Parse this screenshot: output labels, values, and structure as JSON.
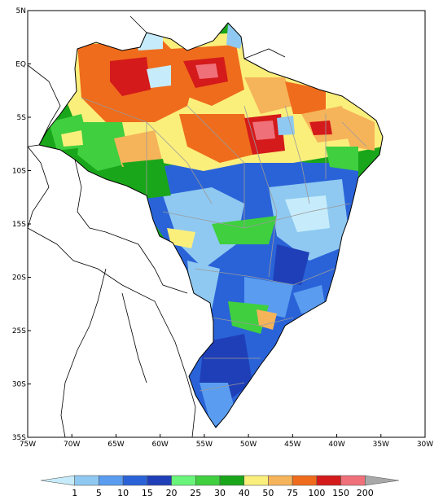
{
  "map": {
    "lat_ticks": [
      "5N",
      "EQ",
      "5S",
      "10S",
      "15S",
      "20S",
      "25S",
      "30S",
      "35S"
    ],
    "lon_ticks": [
      "75W",
      "70W",
      "65W",
      "60W",
      "55W",
      "50W",
      "45W",
      "40W",
      "35W",
      "30W"
    ],
    "lon_range": [
      -75,
      -30
    ],
    "lat_range": [
      -35,
      5
    ],
    "border_color": "#000000",
    "state_line_color": "#9a9a9a"
  },
  "colorbar": {
    "labels": [
      "1",
      "5",
      "10",
      "15",
      "20",
      "25",
      "30",
      "40",
      "50",
      "75",
      "100",
      "150",
      "200"
    ],
    "colors": [
      "#c6ecfb",
      "#8fc9f1",
      "#5a9df0",
      "#2a63d8",
      "#1f3fb8",
      "#69f57a",
      "#3fcf3f",
      "#1aa61a",
      "#fbef7c",
      "#f6b45a",
      "#ef6c1c",
      "#d41a1a",
      "#f0707a",
      "#a8a8a8"
    ]
  }
}
